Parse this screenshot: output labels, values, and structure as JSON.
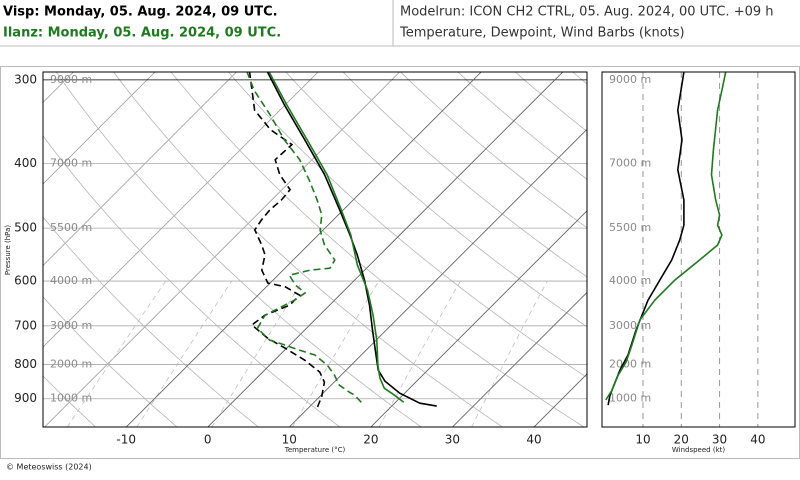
{
  "header": {
    "station_1": "Visp: Monday, 05. Aug. 2024, 09 UTC.",
    "station_2": "Ilanz: Monday, 05. Aug. 2024, 09 UTC.",
    "model_run": "Modelrun: ICON CH2 CTRL, 05. Aug. 2024, 00 UTC. +09 h",
    "description": "Temperature, Dewpoint, Wind Barbs (knots)"
  },
  "footer": "© Meteoswiss (2024)",
  "chart_data": [
    {
      "type": "skewt",
      "xlabel": "Temperature (°C)",
      "ylabel": "Pressure (hPa)",
      "log_y": true,
      "xlim": [
        -20.2,
        46.5
      ],
      "ylim": [
        992,
        292
      ],
      "xticks": [
        -10,
        0,
        10,
        20,
        30,
        40
      ],
      "yticks": [
        300,
        400,
        500,
        600,
        700,
        800,
        900
      ],
      "height_labels": [
        {
          "value": 300,
          "label": "9000 m"
        },
        {
          "value": 400,
          "label": "7000 m"
        },
        {
          "value": 500,
          "label": "5500 m"
        },
        {
          "value": 600,
          "label": "4000 m"
        },
        {
          "value": 700,
          "label": "3000 m"
        },
        {
          "value": 800,
          "label": "2000 m"
        },
        {
          "value": 900,
          "label": "1000 m"
        }
      ],
      "series": [
        {
          "color": "#000000",
          "dashed": false,
          "pressure": [
            923,
            914,
            883,
            847,
            815,
            774,
            710,
            652,
            598,
            548,
            512,
            470,
            416,
            369,
            327,
            292
          ],
          "values": [
            25.5,
            23.1,
            19.4,
            16.1,
            13.9,
            11.8,
            8.3,
            4.9,
            1.2,
            -2.8,
            -6.1,
            -10.4,
            -16.6,
            -23.3,
            -30.1,
            -36.2
          ]
        },
        {
          "color": "#1f7a1f",
          "dashed": false,
          "pressure": [
            911,
            889,
            868,
            838,
            802,
            736,
            674,
            619,
            568,
            512,
            470,
            416,
            369,
            327,
            292
          ],
          "values": [
            21.0,
            19.0,
            16.9,
            15.1,
            13.3,
            10.1,
            6.5,
            2.8,
            -1.5,
            -6.0,
            -10.2,
            -16.3,
            -23.0,
            -29.8,
            -36.0
          ]
        },
        {
          "color": "#000000",
          "dashed": true,
          "pressure": [
            926,
            892,
            850,
            821,
            788,
            756,
            730,
            698,
            675,
            652,
            630,
            612,
            604,
            578,
            548,
            530,
            503,
            486,
            470,
            454,
            438,
            416,
            395,
            375,
            356,
            333,
            292
          ],
          "values": [
            11.0,
            10.2,
            8.8,
            7.0,
            3.7,
            -0.2,
            -3.6,
            -7.1,
            -6.7,
            -4.9,
            -4.9,
            -7.7,
            -10.3,
            -12.6,
            -14.1,
            -15.7,
            -18.4,
            -18.8,
            -19.0,
            -18.8,
            -19.0,
            -22.1,
            -24.5,
            -24.3,
            -28.8,
            -33.1,
            -38.4
          ]
        },
        {
          "color": "#1f7a1f",
          "dashed": true,
          "pressure": [
            911,
            889,
            880,
            859,
            830,
            802,
            774,
            761,
            748,
            735,
            706,
            675,
            641,
            625,
            608,
            588,
            578,
            574,
            558,
            530,
            503,
            478,
            454,
            424,
            395,
            369,
            338,
            311,
            292
          ],
          "values": [
            15.8,
            14.1,
            13.1,
            11.0,
            9.2,
            7.1,
            4.3,
            1.8,
            -0.6,
            -3.1,
            -6.0,
            -6.7,
            -4.9,
            -4.5,
            -6.7,
            -8.6,
            -6.7,
            -4.5,
            -4.9,
            -8.0,
            -10.4,
            -12.0,
            -14.4,
            -17.8,
            -21.5,
            -25.8,
            -30.7,
            -35.6,
            -38.7
          ]
        }
      ]
    },
    {
      "type": "line",
      "xlabel": "Windspeed (kt)",
      "xlim": [
        -0.7,
        49.7
      ],
      "ylim": [
        992,
        292
      ],
      "log_y": true,
      "xticks": [
        10,
        20,
        30,
        40
      ],
      "grid": "dashed",
      "height_labels": [
        {
          "value": 300,
          "label": "9000 m"
        },
        {
          "value": 400,
          "label": "7000 m"
        },
        {
          "value": 500,
          "label": "5500 m"
        },
        {
          "value": 600,
          "label": "4000 m"
        },
        {
          "value": 700,
          "label": "3000 m"
        },
        {
          "value": 800,
          "label": "2000 m"
        },
        {
          "value": 900,
          "label": "1000 m"
        }
      ],
      "series": [
        {
          "color": "#000000",
          "dashed": false,
          "pressure": [
            920,
            889,
            859,
            815,
            774,
            710,
            641,
            598,
            558,
            521,
            495,
            454,
            409,
            369,
            333,
            292
          ],
          "values": [
            0.9,
            1.4,
            2.4,
            4.0,
            6.1,
            8.2,
            11.3,
            14.4,
            17.5,
            19.6,
            20.7,
            20.7,
            19.1,
            20.2,
            19.1,
            20.7
          ]
        },
        {
          "color": "#1f7a1f",
          "dashed": false,
          "pressure": [
            904,
            874,
            830,
            793,
            748,
            686,
            641,
            598,
            558,
            530,
            512,
            495,
            478,
            454,
            416,
            382,
            333,
            311,
            292
          ],
          "values": [
            0.3,
            1.9,
            3.5,
            5.6,
            7.1,
            9.2,
            13.1,
            18.3,
            24.8,
            29.5,
            30.6,
            29.5,
            30.0,
            29.0,
            27.9,
            28.4,
            29.5,
            30.6,
            31.6
          ]
        }
      ]
    }
  ]
}
